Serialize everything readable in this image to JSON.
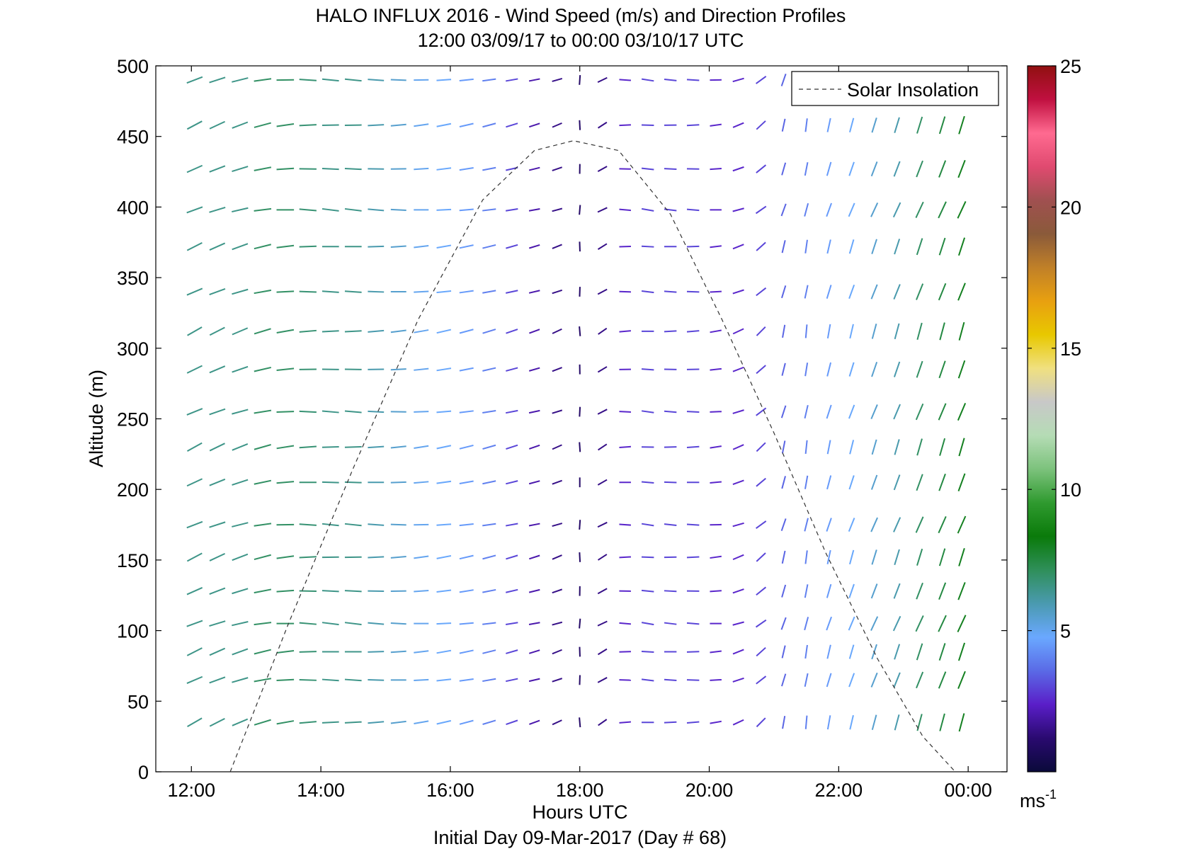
{
  "chart_data": {
    "type": "wind-barb-profile",
    "title": "HALO INFLUX 2016 - Wind Speed (m/s) and Direction Profiles",
    "subtitle": "12:00 03/09/17 to 00:00 03/10/17  UTC",
    "xlabel": "Hours UTC",
    "xlabel2": "Initial Day 09-Mar-2017 (Day # 68)",
    "ylabel": "Altitude (m)",
    "xlim": [
      11.45,
      24.6
    ],
    "ylim": [
      0,
      500
    ],
    "x_ticks": [
      12,
      14,
      16,
      18,
      20,
      22,
      24
    ],
    "x_tick_labels": [
      "12:00",
      "14:00",
      "16:00",
      "18:00",
      "20:00",
      "22:00",
      "00:00"
    ],
    "y_ticks": [
      0,
      50,
      100,
      150,
      200,
      250,
      300,
      350,
      400,
      450,
      500
    ],
    "y_tick_labels": [
      "0",
      "50",
      "100",
      "150",
      "200",
      "250",
      "300",
      "350",
      "400",
      "450",
      "500"
    ],
    "legend": {
      "entries": [
        "Solar Insolation"
      ],
      "placement": "top-right"
    },
    "colorbar": {
      "range": [
        0,
        25
      ],
      "ticks": [
        5,
        10,
        15,
        20,
        25
      ],
      "tick_labels": [
        "5",
        "10",
        "15",
        "20",
        "25"
      ],
      "unit_label": "ms",
      "unit_exponent": "-1",
      "colors": [
        "#0a0a3a",
        "#2a0a70",
        "#5a1ec8",
        "#5a6ae6",
        "#6aa8ff",
        "#4a9ab0",
        "#2f8f5a",
        "#0a7a0a",
        "#2f9a2f",
        "#7cc27c",
        "#b5dcb5",
        "#c8c8c8",
        "#f0e080",
        "#e8c800",
        "#e8a010",
        "#c08028",
        "#8a5a3a",
        "#a05050",
        "#e04a70",
        "#ff6a90",
        "#c01040",
        "#901010"
      ]
    },
    "solar_insolation": {
      "style": "dashed",
      "x": [
        12.6,
        13.5,
        14.5,
        15.5,
        16.5,
        17.3,
        17.9,
        18.6,
        19.4,
        20.2,
        21.0,
        21.8,
        22.6,
        23.3,
        23.8
      ],
      "y": [
        0,
        105,
        215,
        320,
        405,
        440,
        447,
        440,
        395,
        320,
        240,
        155,
        80,
        25,
        0
      ]
    },
    "wind_profile": {
      "times_hours": [
        12.05,
        12.4,
        12.75,
        13.1,
        13.45,
        13.8,
        14.15,
        14.5,
        14.85,
        15.2,
        15.55,
        15.9,
        16.25,
        16.6,
        16.95,
        17.3,
        17.65,
        18.0,
        18.35,
        18.7,
        19.05,
        19.4,
        19.75,
        20.1,
        20.45,
        20.8,
        21.15,
        21.5,
        21.85,
        22.2,
        22.55,
        22.9,
        23.25,
        23.6,
        23.9
      ],
      "altitudes_m": [
        35,
        65,
        85,
        105,
        128,
        152,
        175,
        205,
        230,
        255,
        285,
        312,
        340,
        372,
        398,
        427,
        458,
        490
      ],
      "direction_deg_by_time": [
        245,
        248,
        252,
        258,
        265,
        270,
        272,
        272,
        270,
        268,
        265,
        262,
        260,
        258,
        256,
        255,
        250,
        0,
        60,
        90,
        95,
        92,
        90,
        85,
        70,
        50,
        15,
        10,
        15,
        18,
        20,
        20,
        20,
        20,
        20
      ],
      "speed_ms_by_time": [
        6.5,
        6.5,
        6.5,
        7.0,
        7.0,
        6.8,
        6.5,
        6.5,
        6.0,
        5.5,
        5.0,
        4.8,
        4.5,
        4.0,
        3.0,
        2.0,
        1.5,
        1.0,
        1.5,
        2.5,
        3.0,
        3.0,
        3.0,
        2.5,
        2.5,
        3.0,
        3.5,
        4.0,
        4.5,
        4.8,
        5.5,
        6.0,
        7.0,
        7.5,
        8.0
      ]
    }
  }
}
